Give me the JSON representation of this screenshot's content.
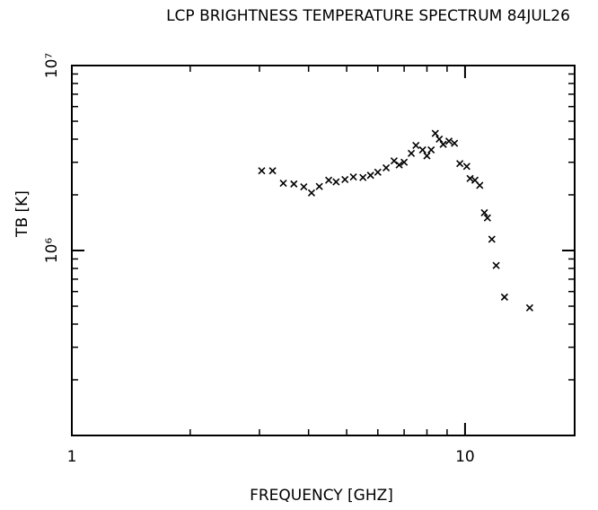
{
  "chart_data": {
    "type": "scatter",
    "title": "LCP BRIGHTNESS TEMPERATURE SPECTRUM 84JUL26",
    "x_label": "FREQUENCY [GHZ]",
    "y_label": "TB [K]",
    "xscale": "log",
    "yscale": "log",
    "xlim": [
      1,
      19
    ],
    "ylim": [
      100000,
      10000000
    ],
    "xticks": [
      1,
      10
    ],
    "xminorticks": [
      2,
      3,
      4,
      5,
      6,
      7,
      8,
      9
    ],
    "yticks": [
      {
        "value": 1000000,
        "label": "10⁶"
      },
      {
        "value": 10000000,
        "label": "10⁷"
      }
    ],
    "yminorticks": [
      200000,
      300000,
      400000,
      500000,
      600000,
      700000,
      800000,
      900000,
      2000000,
      3000000,
      4000000,
      5000000,
      6000000,
      7000000,
      8000000,
      9000000
    ],
    "marker": "x",
    "color": "#000000",
    "x": [
      3.04,
      3.24,
      3.45,
      3.67,
      3.89,
      4.07,
      4.26,
      4.5,
      4.7,
      4.95,
      5.2,
      5.5,
      5.75,
      6.0,
      6.3,
      6.6,
      6.8,
      7.0,
      7.3,
      7.5,
      7.8,
      8.0,
      8.2,
      8.4,
      8.6,
      8.8,
      9.1,
      9.4,
      9.7,
      10.1,
      10.3,
      10.6,
      10.9,
      11.2,
      11.4,
      11.7,
      12.0,
      12.6,
      14.6
    ],
    "values": [
      2700000,
      2700000,
      2310000,
      2290000,
      2210000,
      2050000,
      2220000,
      2400000,
      2350000,
      2420000,
      2500000,
      2480000,
      2550000,
      2650000,
      2800000,
      3050000,
      2900000,
      3000000,
      3350000,
      3700000,
      3500000,
      3250000,
      3500000,
      4300000,
      4000000,
      3750000,
      3900000,
      3800000,
      2950000,
      2850000,
      2450000,
      2400000,
      2250000,
      1600000,
      1500000,
      1150000,
      830000,
      560000,
      490000
    ]
  }
}
